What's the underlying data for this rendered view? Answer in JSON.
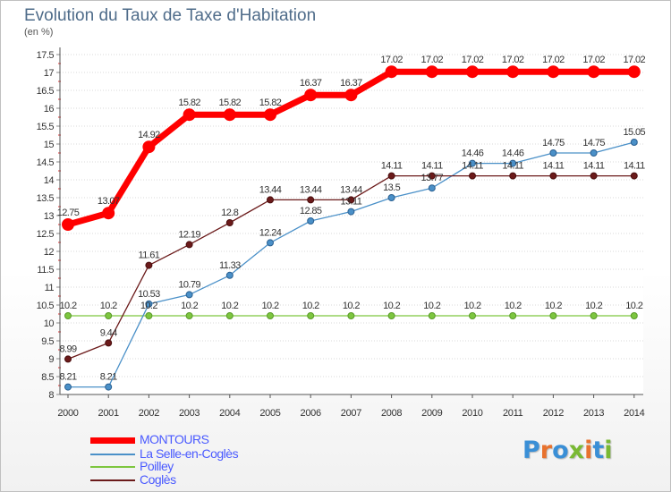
{
  "title": "Evolution du Taux de Taxe d'Habitation",
  "unit_label": "(en %)",
  "logo": {
    "text": "Proxiti",
    "letter_colors": [
      "#3a8fd6",
      "#e8722e",
      "#3a8fd6",
      "#79b933",
      "#e8722e",
      "#3a8fd6",
      "#79b933"
    ]
  },
  "chart_data": {
    "type": "line",
    "title": "Evolution du Taux de Taxe d'Habitation",
    "ylabel": "(en %)",
    "xlabel": "",
    "x": [
      "2000",
      "2001",
      "2002",
      "2003",
      "2004",
      "2005",
      "2006",
      "2007",
      "2008",
      "2009",
      "2010",
      "2011",
      "2012",
      "2013",
      "2014"
    ],
    "ylim": [
      8,
      17.5
    ],
    "yticks": [
      "8",
      "8.5",
      "9",
      "9.5",
      "10",
      "10.5",
      "11",
      "11.5",
      "12",
      "12.5",
      "13",
      "13.5",
      "14",
      "14.5",
      "15",
      "15.5",
      "16",
      "16.5",
      "17",
      "17.5"
    ],
    "grid": "horizontal dotted",
    "legend_placement": "bottom-left",
    "series": [
      {
        "name": "MONTOURS",
        "color": "#ff0000",
        "values": [
          12.75,
          13.07,
          14.92,
          15.82,
          15.82,
          15.82,
          16.37,
          16.37,
          17.02,
          17.02,
          17.02,
          17.02,
          17.02,
          17.02,
          17.02
        ],
        "labels": [
          "12.75",
          "13.07",
          "14.92",
          "15.82",
          "15.82",
          "15.82",
          "16.37",
          "16.37",
          "17.02",
          "17.02",
          "17.02",
          "17.02",
          "17.02",
          "17.02",
          "17.02"
        ]
      },
      {
        "name": "La Selle-en-Coglès",
        "color": "#4a90c8",
        "values": [
          8.21,
          8.21,
          10.53,
          10.79,
          11.33,
          12.24,
          12.85,
          13.11,
          13.5,
          13.77,
          14.46,
          14.46,
          14.75,
          14.75,
          15.05
        ],
        "labels": [
          "8.21",
          "8.21",
          "10.53",
          "10.79",
          "11.33",
          "12.24",
          "12.85",
          "13.11",
          "13.5",
          "13.77",
          "14.46",
          "14.46",
          "14.75",
          "14.75",
          "15.05"
        ]
      },
      {
        "name": "Poilley",
        "color": "#7dc63f",
        "values": [
          10.2,
          10.2,
          10.2,
          10.2,
          10.2,
          10.2,
          10.2,
          10.2,
          10.2,
          10.2,
          10.2,
          10.2,
          10.2,
          10.2,
          10.2
        ],
        "labels": [
          "10.2",
          "10.2",
          "10.2",
          "10.2",
          "10.2",
          "10.2",
          "10.2",
          "10.2",
          "10.2",
          "10.2",
          "10.2",
          "10.2",
          "10.2",
          "10.2",
          "10.2"
        ]
      },
      {
        "name": "Coglès",
        "color": "#6b1a1a",
        "values": [
          8.99,
          9.44,
          11.61,
          12.19,
          12.8,
          13.44,
          13.44,
          13.44,
          14.11,
          14.11,
          14.11,
          14.11,
          14.11,
          14.11,
          14.11
        ],
        "labels": [
          "8.99",
          "9.44",
          "11.61",
          "12.19",
          "12.8",
          "13.44",
          "13.44",
          "13.44",
          "14.11",
          "14.11",
          "14.11",
          "14.11",
          "14.11",
          "14.11",
          "14.11"
        ]
      }
    ]
  }
}
